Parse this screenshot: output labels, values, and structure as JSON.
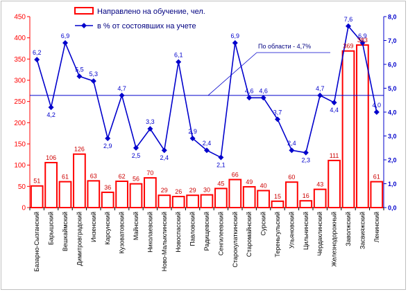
{
  "chart_data": {
    "type": "bar",
    "categories": [
      "Базарно-Сызганский",
      "Барышский",
      "Вешкаймский",
      "Димитровградский",
      "Инзенский",
      "Карсунский",
      "Кузоватовский",
      "Майнский",
      "Николаевский",
      "Ново-Малыклинский",
      "Новоспасский",
      "Павловский",
      "Радищевский",
      "Сенгилеевский",
      "Старокулаткинский",
      "Старомайнский",
      "Сурский",
      "Тереньгульский",
      "Ульяновский",
      "Цильнинский",
      "Чердаклинский",
      "Железнодорожный",
      "Заволжский",
      "Засвияжский",
      "Ленинский"
    ],
    "series": [
      {
        "name": "Направлено на обучение, чел.",
        "type": "bar",
        "axis": "left",
        "color": "#ff0000",
        "values": [
          51,
          106,
          61,
          126,
          63,
          36,
          62,
          56,
          70,
          29,
          26,
          29,
          30,
          45,
          66,
          49,
          40,
          15,
          60,
          16,
          43,
          111,
          369,
          383,
          61
        ],
        "labels": [
          "51",
          "106",
          "61",
          "126",
          "63",
          "36",
          "62",
          "56",
          "70",
          "29",
          "26",
          "29",
          "30",
          "45",
          "66",
          "49",
          "40",
          "15",
          "60",
          "16",
          "43",
          "111",
          "369",
          "383",
          "61"
        ]
      },
      {
        "name": "в % от состоявших на учете",
        "type": "line",
        "axis": "right",
        "color": "#0000cc",
        "values": [
          6.2,
          4.2,
          6.9,
          5.5,
          5.3,
          2.9,
          4.7,
          2.5,
          3.3,
          2.4,
          6.1,
          2.9,
          2.4,
          2.1,
          6.9,
          4.6,
          4.6,
          3.7,
          2.4,
          2.3,
          4.7,
          4.4,
          7.6,
          6.9,
          4.0
        ],
        "labels": [
          "6,2",
          "4,2",
          "6,9",
          "5,5",
          "5,3",
          "2,9",
          "4,7",
          "2,5",
          "3,3",
          "2,4",
          "6,1",
          "2,9",
          "2,4",
          "2,1",
          "6,9",
          "4,6",
          "4,6",
          "3,7",
          "2,4",
          "2,3",
          "4,7",
          "4,4",
          "7,6",
          "6,9",
          "4,0"
        ]
      }
    ],
    "left_axis": {
      "ylim": [
        0,
        450
      ],
      "ticks": [
        "0",
        "50",
        "100",
        "150",
        "200",
        "250",
        "300",
        "350",
        "400",
        "450"
      ]
    },
    "right_axis": {
      "ylim": [
        0,
        8
      ],
      "ticks": [
        "0,0",
        "1,0",
        "2,0",
        "3,0",
        "4,0",
        "5,0",
        "6,0",
        "7,0",
        "8,0"
      ]
    },
    "reference_line": {
      "value": 4.7,
      "label": "По области - 4,7%"
    },
    "legend": {
      "placement": "top-left"
    },
    "grid": false
  }
}
